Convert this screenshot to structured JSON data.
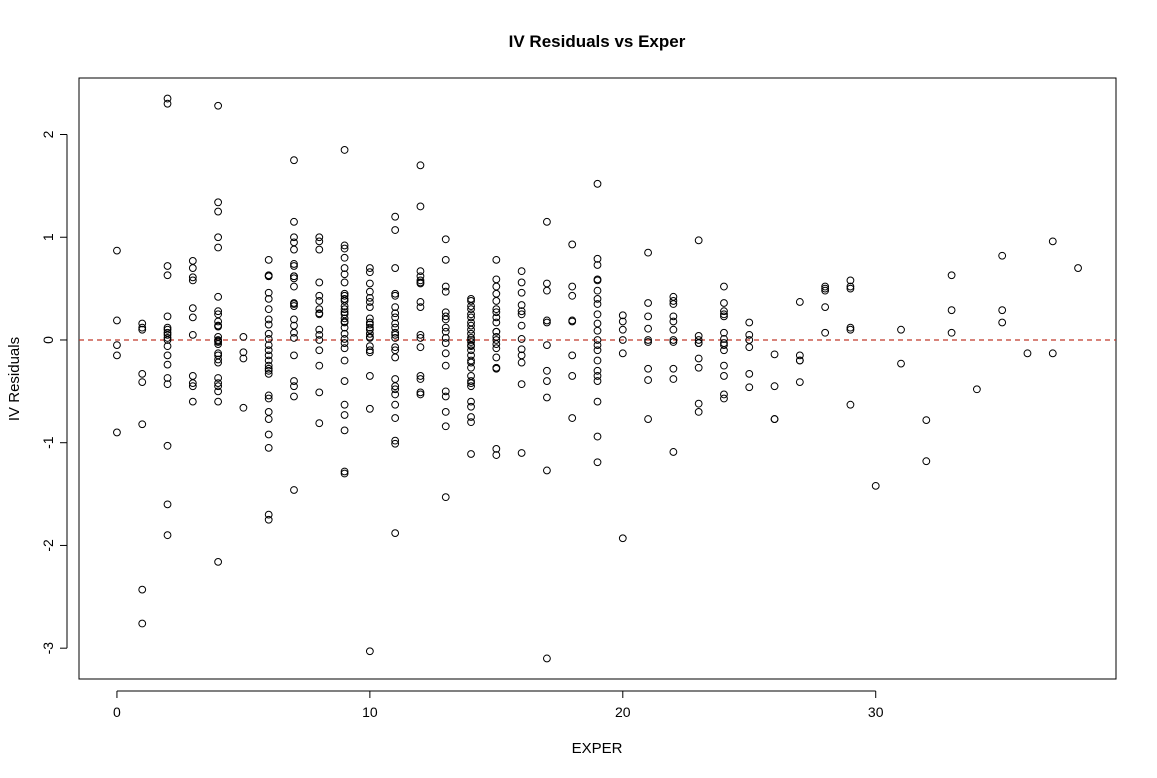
{
  "chart_data": {
    "type": "scatter",
    "title": "IV Residuals vs Exper",
    "xlabel": "EXPER",
    "ylabel": "IV Residuals",
    "xlim": [
      -1.5,
      39.5
    ],
    "ylim": [
      -3.3,
      2.55
    ],
    "xticks": [
      0,
      10,
      20,
      30
    ],
    "yticks": [
      -3,
      -2,
      -1,
      0,
      1,
      2
    ],
    "grid": false,
    "legend": "none",
    "reference_line": {
      "y": 0,
      "color": "#c0392b",
      "style": "dashed"
    },
    "points": {
      "x": [
        0,
        0,
        0,
        0,
        0,
        1,
        1,
        1,
        1,
        1,
        1,
        1,
        1,
        2,
        2,
        2,
        2,
        2,
        2,
        2,
        2,
        2,
        2,
        2,
        2,
        2,
        2,
        2,
        2,
        2,
        2,
        2,
        3,
        3,
        3,
        3,
        3,
        3,
        3,
        3,
        3,
        3,
        3,
        4,
        4,
        4,
        4,
        4,
        4,
        4,
        4,
        4,
        4,
        4,
        4,
        4,
        4,
        4,
        4,
        4,
        4,
        4,
        4,
        4,
        4,
        4,
        4,
        4,
        4,
        4,
        5,
        5,
        5,
        5,
        6,
        6,
        6,
        6,
        6,
        6,
        6,
        6,
        6,
        6,
        6,
        6,
        6,
        6,
        6,
        6,
        6,
        6,
        6,
        6,
        6,
        6,
        6,
        6,
        6,
        6,
        6,
        7,
        7,
        7,
        7,
        7,
        7,
        7,
        7,
        7,
        7,
        7,
        7,
        7,
        7,
        7,
        7,
        7,
        7,
        7,
        7,
        7,
        7,
        7,
        8,
        8,
        8,
        8,
        8,
        8,
        8,
        8,
        8,
        8,
        8,
        8,
        8,
        8,
        8,
        8,
        9,
        9,
        9,
        9,
        9,
        9,
        9,
        9,
        9,
        9,
        9,
        9,
        9,
        9,
        9,
        9,
        9,
        9,
        9,
        9,
        9,
        9,
        9,
        9,
        9,
        9,
        9,
        9,
        9,
        9,
        10,
        10,
        10,
        10,
        10,
        10,
        10,
        10,
        10,
        10,
        10,
        10,
        10,
        10,
        10,
        10,
        10,
        10,
        10,
        10,
        10,
        11,
        11,
        11,
        11,
        11,
        11,
        11,
        11,
        11,
        11,
        11,
        11,
        11,
        11,
        11,
        11,
        11,
        11,
        11,
        11,
        11,
        11,
        11,
        11,
        11,
        12,
        12,
        12,
        12,
        12,
        12,
        12,
        12,
        12,
        12,
        12,
        12,
        12,
        12,
        12,
        12,
        13,
        13,
        13,
        13,
        13,
        13,
        13,
        13,
        13,
        13,
        13,
        13,
        13,
        13,
        13,
        13,
        13,
        13,
        14,
        14,
        14,
        14,
        14,
        14,
        14,
        14,
        14,
        14,
        14,
        14,
        14,
        14,
        14,
        14,
        14,
        14,
        14,
        14,
        14,
        14,
        14,
        14,
        14,
        14,
        14,
        14,
        14,
        15,
        15,
        15,
        15,
        15,
        15,
        15,
        15,
        15,
        15,
        15,
        15,
        15,
        15,
        15,
        15,
        15,
        15,
        15,
        15,
        16,
        16,
        16,
        16,
        16,
        16,
        16,
        16,
        16,
        16,
        16,
        16,
        16,
        17,
        17,
        17,
        17,
        17,
        17,
        17,
        17,
        17,
        17,
        17,
        18,
        18,
        18,
        18,
        18,
        18,
        18,
        18,
        19,
        19,
        19,
        19,
        19,
        19,
        19,
        19,
        19,
        19,
        19,
        19,
        19,
        19,
        19,
        19,
        19,
        19,
        19,
        19,
        19,
        20,
        20,
        20,
        20,
        20,
        20,
        21,
        21,
        21,
        21,
        21,
        21,
        21,
        21,
        21,
        22,
        22,
        22,
        22,
        22,
        22,
        22,
        22,
        22,
        22,
        22,
        23,
        23,
        23,
        23,
        23,
        23,
        23,
        23,
        23,
        24,
        24,
        24,
        24,
        24,
        24,
        24,
        24,
        24,
        24,
        24,
        24,
        24,
        24,
        25,
        25,
        25,
        25,
        25,
        25,
        26,
        26,
        26,
        26,
        27,
        27,
        27,
        27,
        27,
        28,
        28,
        28,
        28,
        28,
        29,
        29,
        29,
        29,
        29,
        29,
        30,
        31,
        31,
        32,
        32,
        33,
        33,
        33,
        34,
        35,
        35,
        35,
        36,
        37,
        37,
        38
      ],
      "y": [
        0.87,
        0.19,
        -0.05,
        -0.15,
        -0.9,
        0.16,
        0.12,
        0.1,
        -0.33,
        -0.41,
        -0.82,
        -2.43,
        -2.76,
        2.35,
        2.3,
        0.72,
        0.63,
        0.23,
        0.12,
        0.1,
        0.07,
        -0.06,
        -0.15,
        -0.24,
        -0.37,
        -0.43,
        -1.03,
        -1.6,
        -1.9,
        0.02,
        0.05,
        0.0,
        0.77,
        0.7,
        0.61,
        0.58,
        0.31,
        0.22,
        -0.35,
        -0.42,
        -0.45,
        -0.6,
        0.05,
        2.28,
        1.34,
        1.25,
        1.0,
        0.9,
        0.42,
        0.28,
        0.25,
        0.18,
        0.14,
        0.14,
        0.03,
        -0.01,
        -0.04,
        -0.13,
        -0.15,
        -0.19,
        -0.22,
        -0.37,
        -0.42,
        -0.45,
        -0.5,
        -0.6,
        -2.16,
        0.0,
        -0.02,
        0.13,
        0.03,
        -0.12,
        -0.18,
        -0.66,
        0.78,
        0.63,
        0.62,
        0.46,
        0.4,
        0.3,
        0.2,
        0.15,
        0.06,
        -0.05,
        -0.1,
        -0.15,
        -0.2,
        -0.25,
        -0.28,
        -0.33,
        -0.54,
        -0.57,
        -0.7,
        -0.77,
        -0.92,
        -1.05,
        -1.7,
        -1.75,
        0.01,
        -0.3,
        0.62,
        1.75,
        1.15,
        1.0,
        0.95,
        0.88,
        0.74,
        0.72,
        0.62,
        0.6,
        0.52,
        0.36,
        0.33,
        0.2,
        0.14,
        0.07,
        0.02,
        -0.15,
        -0.4,
        -0.45,
        -0.55,
        -1.46,
        0.35,
        0.62,
        1.0,
        0.88,
        0.56,
        0.43,
        0.38,
        0.3,
        0.26,
        0.25,
        0.1,
        0.05,
        0.0,
        -0.1,
        -0.25,
        -0.51,
        -0.81,
        0.96,
        1.85,
        0.92,
        0.89,
        0.8,
        0.7,
        0.64,
        0.56,
        0.45,
        0.4,
        0.38,
        0.3,
        0.27,
        0.25,
        0.21,
        0.18,
        0.12,
        0.06,
        0.01,
        -0.03,
        -0.08,
        -0.2,
        -0.4,
        -0.63,
        -0.73,
        -0.88,
        -1.28,
        -1.3,
        0.33,
        0.17,
        0.43,
        0.7,
        0.66,
        0.55,
        0.47,
        0.41,
        0.37,
        0.32,
        0.21,
        0.17,
        0.15,
        0.12,
        0.06,
        0.03,
        -0.06,
        -0.12,
        -0.35,
        -0.67,
        -3.03,
        0.1,
        0.02,
        -0.1,
        1.2,
        1.07,
        0.7,
        0.45,
        0.43,
        0.32,
        0.22,
        0.16,
        0.12,
        0.05,
        0.02,
        -0.07,
        -0.1,
        -0.17,
        -0.38,
        -0.45,
        -0.48,
        -0.53,
        -0.63,
        -0.76,
        -0.98,
        -1.01,
        -1.88,
        0.26,
        0.07,
        1.7,
        1.3,
        0.67,
        0.62,
        0.56,
        0.55,
        0.37,
        0.32,
        0.02,
        -0.07,
        -0.35,
        -0.38,
        -0.51,
        -0.53,
        0.58,
        0.05,
        0.98,
        0.78,
        0.52,
        0.47,
        0.27,
        0.23,
        0.2,
        0.12,
        0.02,
        -0.03,
        -0.13,
        -0.25,
        -0.5,
        -0.55,
        -0.7,
        -0.84,
        -1.53,
        0.08,
        0.38,
        0.33,
        0.3,
        0.25,
        0.22,
        0.17,
        0.1,
        0.06,
        0.02,
        -0.02,
        -0.06,
        -0.1,
        -0.15,
        -0.2,
        -0.27,
        -0.35,
        -0.4,
        -0.45,
        -0.6,
        -0.65,
        -0.75,
        -0.8,
        -1.11,
        0.4,
        0.14,
        -0.05,
        -0.22,
        -0.42,
        0.0,
        0.78,
        0.59,
        0.52,
        0.45,
        0.38,
        0.3,
        0.27,
        0.17,
        0.08,
        0.03,
        -0.04,
        -0.08,
        -0.17,
        -0.27,
        -1.06,
        -1.12,
        0.0,
        0.22,
        -0.28,
        0.08,
        0.67,
        0.56,
        0.46,
        0.34,
        0.28,
        0.25,
        0.14,
        0.01,
        -0.09,
        -0.15,
        -0.22,
        -0.43,
        -1.1,
        1.15,
        0.55,
        0.48,
        0.19,
        0.17,
        -0.05,
        -0.3,
        -0.4,
        -0.56,
        -1.27,
        -3.1,
        0.93,
        0.52,
        0.43,
        0.19,
        -0.15,
        -0.35,
        -0.76,
        0.18,
        1.52,
        0.79,
        0.73,
        0.59,
        0.48,
        0.4,
        0.35,
        0.25,
        0.16,
        0.09,
        0.0,
        -0.05,
        -0.1,
        -0.2,
        -0.3,
        -0.4,
        -0.6,
        -0.94,
        -1.19,
        -0.35,
        0.58,
        0.24,
        0.18,
        0.1,
        -0.13,
        -1.93,
        0.0,
        0.85,
        0.36,
        0.23,
        0.11,
        -0.02,
        -0.28,
        -0.39,
        -0.77,
        0.0,
        0.42,
        0.38,
        0.35,
        0.23,
        0.18,
        0.1,
        -0.02,
        -0.28,
        -0.38,
        -1.09,
        0.0,
        0.97,
        0.04,
        -0.03,
        -0.18,
        -0.27,
        -0.62,
        -0.7,
        0.0,
        -0.03,
        0.52,
        0.36,
        0.28,
        0.23,
        0.07,
        0.01,
        -0.03,
        -0.1,
        -0.25,
        -0.35,
        -0.53,
        -0.57,
        0.25,
        -0.05,
        0.17,
        0.05,
        0.0,
        -0.07,
        -0.33,
        -0.46,
        -0.14,
        -0.45,
        -0.77,
        -0.77,
        0.37,
        -0.15,
        -0.2,
        -0.41,
        -0.2,
        0.52,
        0.48,
        0.32,
        0.07,
        0.5,
        0.58,
        0.52,
        0.5,
        0.12,
        0.1,
        -0.63,
        -1.42,
        0.1,
        -0.23,
        -0.78,
        -1.18,
        0.63,
        0.29,
        0.07,
        -0.48,
        0.82,
        0.29,
        0.17,
        -0.13,
        0.96,
        -0.13,
        0.7
      ]
    }
  }
}
